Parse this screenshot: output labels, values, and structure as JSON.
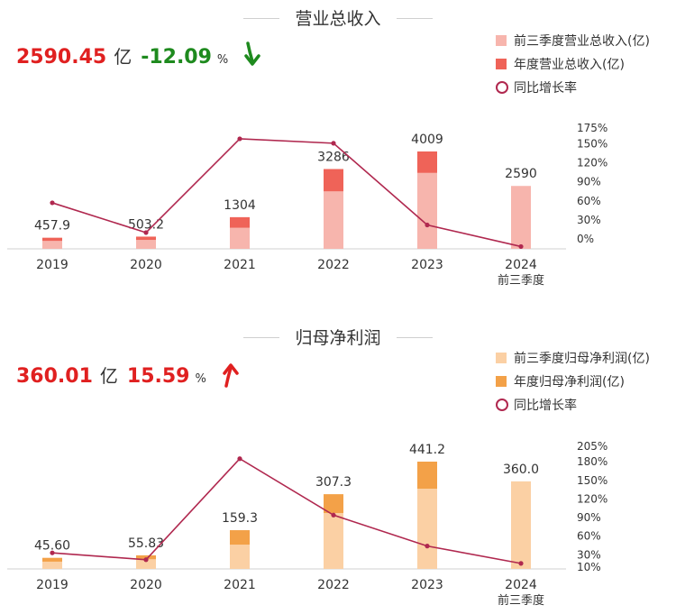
{
  "charts": [
    {
      "title": "营业总收入",
      "headline_value": "2590.45",
      "headline_unit": "亿",
      "headline_pct": "-12.09",
      "headline_pct_sign": "%",
      "trend": "down",
      "legend": [
        "前三季度营业总收入(亿)",
        "年度营业总收入(亿)",
        "同比增长率"
      ],
      "colors": {
        "q3": "#f7b5ad",
        "annual": "#ef6358",
        "line": "#b0284f",
        "trend": "#1e8a1e"
      }
    },
    {
      "title": "归母净利润",
      "headline_value": "360.01",
      "headline_unit": "亿",
      "headline_pct": "15.59",
      "headline_pct_sign": "%",
      "trend": "up",
      "legend": [
        "前三季度归母净利润(亿)",
        "年度归母净利润(亿)",
        "同比增长率"
      ],
      "colors": {
        "q3": "#fbd0a4",
        "annual": "#f3a148",
        "line": "#b0284f",
        "trend": "#e02020"
      }
    }
  ],
  "chart_data": [
    {
      "type": "bar",
      "title": "营业总收入",
      "categories": [
        "2019",
        "2020",
        "2021",
        "2022",
        "2023",
        "2024"
      ],
      "category_sublabels": [
        "",
        "",
        "",
        "",
        "",
        "前三季度"
      ],
      "series": [
        {
          "name": "前三季度营业总收入(亿)",
          "values": [
            330,
            370,
            870,
            2370,
            3130,
            2590
          ]
        },
        {
          "name": "年度营业总收入(亿)",
          "values": [
            457.9,
            503.2,
            1304,
            3286,
            4009,
            null
          ]
        },
        {
          "name": "同比增长率",
          "axis": "right",
          "values": [
            57,
            10,
            158,
            151,
            22,
            -12
          ]
        }
      ],
      "data_labels": [
        "457.9",
        "503.2",
        "1304",
        "3286",
        "4009",
        "2590"
      ],
      "right_axis_ticks": [
        "175%",
        "150%",
        "120%",
        "90%",
        "60%",
        "30%",
        "0%"
      ],
      "right_axis_values": [
        175,
        150,
        120,
        90,
        60,
        30,
        0
      ]
    },
    {
      "type": "bar",
      "title": "归母净利润",
      "categories": [
        "2019",
        "2020",
        "2021",
        "2022",
        "2023",
        "2024"
      ],
      "category_sublabels": [
        "",
        "",
        "",
        "",
        "",
        "前三季度"
      ],
      "series": [
        {
          "name": "前三季度归母净利润(亿)",
          "values": [
            30,
            40,
            100,
            230,
            330,
            360.0
          ]
        },
        {
          "name": "年度归母净利润(亿)",
          "values": [
            45.6,
            55.83,
            159.3,
            307.3,
            441.2,
            null
          ]
        },
        {
          "name": "同比增长率",
          "axis": "right",
          "values": [
            33,
            22,
            185,
            94,
            44,
            16
          ]
        }
      ],
      "data_labels": [
        "45.60",
        "55.83",
        "159.3",
        "307.3",
        "441.2",
        "360.0"
      ],
      "right_axis_ticks": [
        "205%",
        "180%",
        "150%",
        "120%",
        "90%",
        "60%",
        "30%",
        "10%"
      ],
      "right_axis_values": [
        205,
        180,
        150,
        120,
        90,
        60,
        30,
        10
      ]
    }
  ]
}
